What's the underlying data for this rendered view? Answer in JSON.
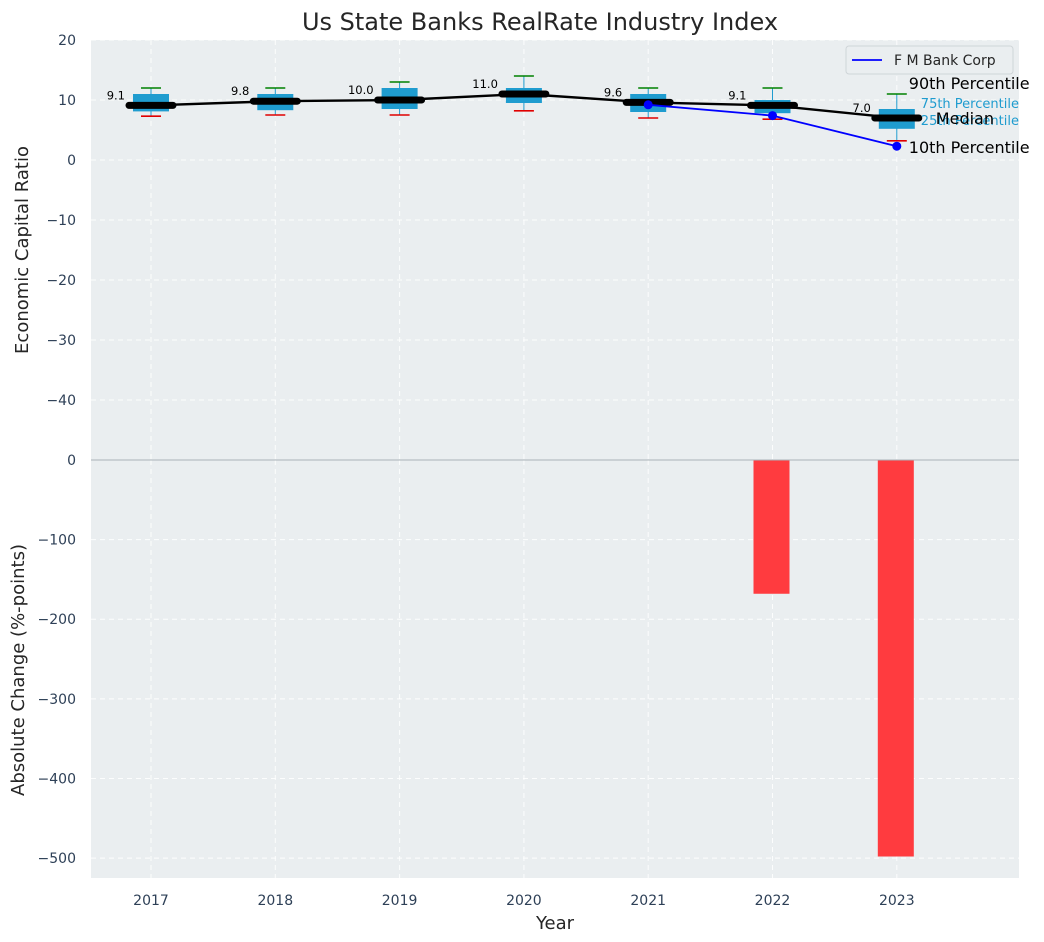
{
  "chart_data": {
    "type": "box-and-bar",
    "title": "Us State Banks RealRate Industry Index",
    "xlabel": "Year",
    "categories": [
      "2017",
      "2018",
      "2019",
      "2020",
      "2021",
      "2022",
      "2023"
    ],
    "top_panel": {
      "ylabel": "Economic Capital Ratio",
      "ylim": [
        -50,
        20
      ],
      "yticks": [
        20,
        10,
        0,
        -10,
        -20,
        -30,
        -40
      ],
      "ytick_labels": [
        "20",
        "10",
        "0",
        "−10",
        "−20",
        "−30",
        "−40"
      ],
      "percentiles": [
        {
          "year": "2017",
          "p10": 7.3,
          "p25": 8.1,
          "median": 9.1,
          "p75": 11.0,
          "p90": 12.0,
          "label": "9.1"
        },
        {
          "year": "2018",
          "p10": 7.5,
          "p25": 8.3,
          "median": 9.8,
          "p75": 11.0,
          "p90": 12.0,
          "label": "9.8"
        },
        {
          "year": "2019",
          "p10": 7.5,
          "p25": 8.5,
          "median": 10.0,
          "p75": 12.0,
          "p90": 13.0,
          "label": "10.0"
        },
        {
          "year": "2020",
          "p10": 8.2,
          "p25": 9.5,
          "median": 11.0,
          "p75": 12.0,
          "p90": 14.0,
          "label": "11.0"
        },
        {
          "year": "2021",
          "p10": 7.0,
          "p25": 8.0,
          "median": 9.6,
          "p75": 11.0,
          "p90": 12.0,
          "label": "9.6"
        },
        {
          "year": "2022",
          "p10": 6.8,
          "p25": 7.8,
          "median": 9.1,
          "p75": 10.0,
          "p90": 12.0,
          "label": "9.1"
        },
        {
          "year": "2023",
          "p10": 3.2,
          "p25": 5.2,
          "median": 7.0,
          "p75": 8.5,
          "p90": 11.0,
          "label": "7.0"
        }
      ],
      "series": [
        {
          "name": "F M Bank Corp",
          "color": "#0000ff",
          "x": [
            "2021",
            "2022",
            "2023"
          ],
          "values": [
            9.2,
            7.4,
            2.3
          ]
        }
      ],
      "annotations": {
        "p90": "90th Percentile",
        "p75": "75th Percentile",
        "median": "Median",
        "p25": "25th Percentile",
        "p10": "10th Percentile"
      }
    },
    "bottom_panel": {
      "type": "bar",
      "ylabel": "Absolute Change (%-points)",
      "ylim": [
        -525,
        0
      ],
      "yticks": [
        0,
        -100,
        -200,
        -300,
        -400,
        -500
      ],
      "ytick_labels": [
        "0",
        "−100",
        "−200",
        "−300",
        "−400",
        "−500"
      ],
      "x": [
        "2022",
        "2023"
      ],
      "values": [
        -168,
        -498
      ],
      "color": "#ff3b3f"
    },
    "legend": {
      "position": "top-right",
      "entries": [
        "F M Bank Corp"
      ]
    },
    "colors": {
      "background": "#eaeef0",
      "box": "#1f9ccf",
      "median": "#000000",
      "whisker_top": "#008000",
      "whisker_bottom": "#e00000",
      "company": "#0000ff",
      "bar": "#ff3b3f"
    },
    "grid": true
  }
}
